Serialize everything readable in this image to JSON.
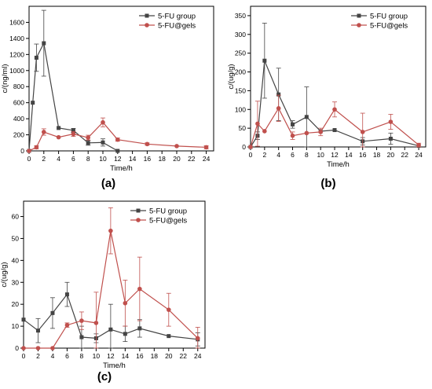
{
  "colors": {
    "group": "#444444",
    "gels": "#c0504d",
    "axis": "#000000"
  },
  "chart_data": [
    {
      "type": "line",
      "panel_label": "(a)",
      "xlabel": "Time/h",
      "ylabel": "c/(ng/ml)",
      "xlim": [
        0,
        25
      ],
      "ylim": [
        0,
        1800
      ],
      "xticks": [
        0,
        2,
        4,
        6,
        8,
        10,
        12,
        14,
        16,
        18,
        20,
        22,
        24
      ],
      "yticks": [
        0,
        200,
        400,
        600,
        800,
        1000,
        1200,
        1400,
        1600
      ],
      "legend_position": "top-right",
      "series": [
        {
          "name": "5-FU group",
          "x": [
            0,
            0.5,
            1,
            2,
            4,
            6,
            8,
            10,
            12
          ],
          "y": [
            0,
            600,
            1160,
            1340,
            285,
            255,
            100,
            105,
            0
          ],
          "err": [
            0,
            0,
            170,
            410,
            0,
            25,
            30,
            45,
            0
          ]
        },
        {
          "name": "5-FU@gels",
          "x": [
            0,
            1,
            2,
            4,
            6,
            8,
            10,
            12,
            16,
            20,
            24
          ],
          "y": [
            0,
            45,
            235,
            170,
            210,
            165,
            355,
            140,
            85,
            60,
            45
          ],
          "err": [
            0,
            20,
            40,
            0,
            30,
            30,
            55,
            20,
            15,
            0,
            20
          ]
        }
      ]
    },
    {
      "type": "line",
      "panel_label": "(b)",
      "xlabel": "Time/h",
      "ylabel": "c/(ug/g)",
      "xlim": [
        0,
        25
      ],
      "ylim": [
        0,
        375
      ],
      "xticks": [
        0,
        2,
        4,
        6,
        8,
        10,
        12,
        14,
        16,
        18,
        20,
        22,
        24
      ],
      "yticks": [
        0,
        50,
        100,
        150,
        200,
        250,
        300,
        350
      ],
      "legend_position": "top-right",
      "series": [
        {
          "name": "5-FU group",
          "x": [
            0,
            1,
            2,
            4,
            6,
            8,
            10,
            12,
            16,
            20,
            24
          ],
          "y": [
            0,
            30,
            230,
            140,
            60,
            80,
            42,
            45,
            15,
            22,
            3
          ],
          "err": [
            0,
            10,
            100,
            70,
            10,
            80,
            0,
            0,
            10,
            15,
            0
          ]
        },
        {
          "name": "5-FU@gels",
          "x": [
            0,
            1,
            2,
            4,
            6,
            8,
            10,
            12,
            16,
            20,
            24
          ],
          "y": [
            0,
            62,
            42,
            103,
            30,
            37,
            40,
            100,
            40,
            67,
            5
          ],
          "err": [
            0,
            60,
            0,
            35,
            10,
            0,
            10,
            20,
            50,
            20,
            5
          ]
        }
      ]
    },
    {
      "type": "line",
      "panel_label": "(c)",
      "xlabel": "Time/h",
      "ylabel": "c/(ug/g)",
      "xlim": [
        0,
        25
      ],
      "ylim": [
        0,
        67
      ],
      "xticks": [
        0,
        2,
        4,
        6,
        8,
        10,
        12,
        14,
        16,
        18,
        20,
        22,
        24
      ],
      "yticks": [
        0,
        10,
        20,
        30,
        40,
        50,
        60
      ],
      "legend_position": "top-right",
      "series": [
        {
          "name": "5-FU group",
          "x": [
            0,
            2,
            4,
            6,
            8,
            10,
            12,
            14,
            16,
            20,
            24
          ],
          "y": [
            13,
            8,
            16,
            24.5,
            5,
            4.5,
            8.5,
            6.5,
            9,
            5.5,
            4
          ],
          "err": [
            0,
            5.5,
            7,
            5.5,
            5,
            2,
            11.5,
            3.5,
            4,
            0,
            3
          ]
        },
        {
          "name": "5-FU@gels",
          "x": [
            0,
            2,
            4,
            6,
            8,
            10,
            12,
            14,
            16,
            20,
            24
          ],
          "y": [
            0,
            0,
            0,
            10.5,
            12.5,
            11.5,
            53.5,
            20.5,
            27,
            17.5,
            4.5
          ],
          "err": [
            0,
            0,
            0,
            1,
            4,
            14,
            10.5,
            10.5,
            14.5,
            7.5,
            5
          ]
        }
      ]
    }
  ]
}
